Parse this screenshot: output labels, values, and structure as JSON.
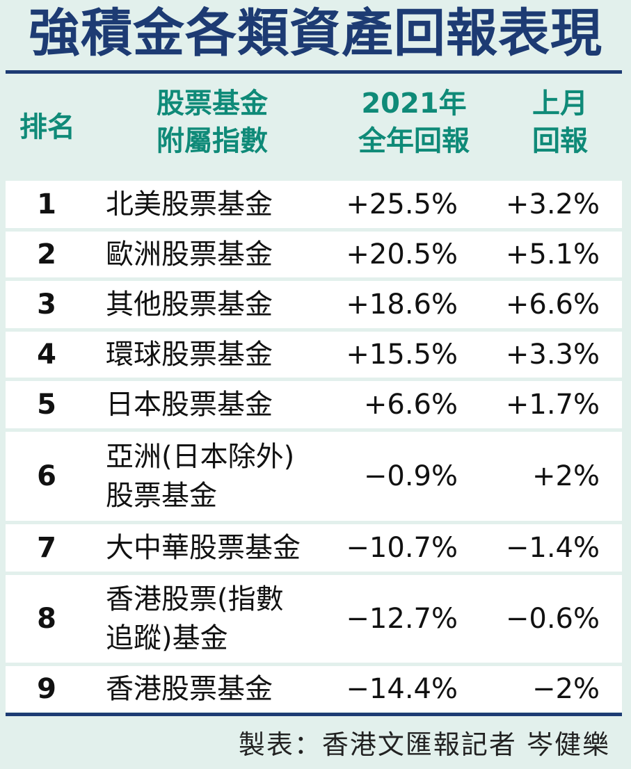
{
  "title": "強積金各類資產回報表現",
  "header": {
    "rank": "排名",
    "fund_line1": "股票基金",
    "fund_line2": "附屬指數",
    "year_line1": "2021年",
    "year_line2": "全年回報",
    "month_line1": "上月",
    "month_line2": "回報"
  },
  "rows": [
    {
      "rank": "1",
      "fund_line1": "北美股票基金",
      "fund_line2": "",
      "year": "+25.5%",
      "month": "+3.2%"
    },
    {
      "rank": "2",
      "fund_line1": "歐洲股票基金",
      "fund_line2": "",
      "year": "+20.5%",
      "month": "+5.1%"
    },
    {
      "rank": "3",
      "fund_line1": "其他股票基金",
      "fund_line2": "",
      "year": "+18.6%",
      "month": "+6.6%"
    },
    {
      "rank": "4",
      "fund_line1": "環球股票基金",
      "fund_line2": "",
      "year": "+15.5%",
      "month": "+3.3%"
    },
    {
      "rank": "5",
      "fund_line1": "日本股票基金",
      "fund_line2": "",
      "year": "+6.6%",
      "month": "+1.7%"
    },
    {
      "rank": "6",
      "fund_line1": "亞洲(日本除外)",
      "fund_line2": "股票基金",
      "year": "−0.9%",
      "month": "+2%"
    },
    {
      "rank": "7",
      "fund_line1": "大中華股票基金",
      "fund_line2": "",
      "year": "−10.7%",
      "month": "−1.4%"
    },
    {
      "rank": "8",
      "fund_line1": "香港股票(指數",
      "fund_line2": "追蹤)基金",
      "year": "−12.7%",
      "month": "−0.6%"
    },
    {
      "rank": "9",
      "fund_line1": "香港股票基金",
      "fund_line2": "",
      "year": "−14.4%",
      "month": "−2%"
    }
  ],
  "credit": "製表：香港文匯報記者 岑健樂"
}
